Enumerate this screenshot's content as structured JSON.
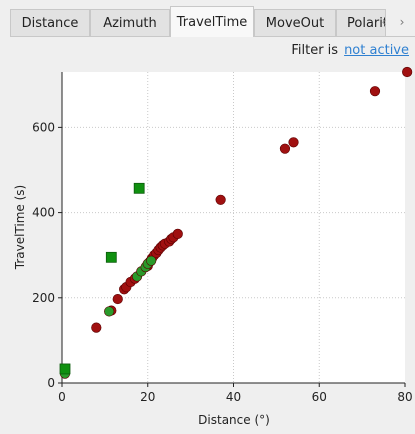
{
  "tabs": [
    {
      "label": "Distance",
      "active": false
    },
    {
      "label": "Azimuth",
      "active": false
    },
    {
      "label": "TravelTime",
      "active": true
    },
    {
      "label": "MoveOut",
      "active": false
    },
    {
      "label": "Polarity",
      "active": false
    }
  ],
  "tab_arrows": {
    "left": "‹",
    "right": "›"
  },
  "filter": {
    "label": "Filter is",
    "status": "not active"
  },
  "chart_data": {
    "type": "scatter",
    "title": "",
    "xlabel": "Distance (°)",
    "ylabel": "TravelTime (s)",
    "xlim": [
      0,
      80
    ],
    "ylim": [
      0,
      730
    ],
    "xticks": [
      0,
      20,
      40,
      60,
      80
    ],
    "yticks": [
      0,
      200,
      400,
      600
    ],
    "grid": true,
    "legend": "none",
    "series": [
      {
        "marker": "circle",
        "color": "#a01010",
        "points": [
          [
            8,
            130
          ],
          [
            11.5,
            170
          ],
          [
            13,
            197
          ],
          [
            14.5,
            220
          ],
          [
            15,
            225
          ],
          [
            16,
            237
          ],
          [
            17,
            245
          ],
          [
            20,
            275
          ],
          [
            20.5,
            285
          ],
          [
            21,
            293
          ],
          [
            21.5,
            300
          ],
          [
            22,
            305
          ],
          [
            22.5,
            312
          ],
          [
            23,
            318
          ],
          [
            23.5,
            323
          ],
          [
            24,
            327
          ],
          [
            25,
            332
          ],
          [
            25.5,
            338
          ],
          [
            26,
            342
          ],
          [
            27,
            350
          ],
          [
            37,
            430
          ],
          [
            52,
            550
          ],
          [
            54,
            565
          ],
          [
            73,
            685
          ],
          [
            80.5,
            730
          ]
        ]
      },
      {
        "marker": "circle",
        "color": "#2a9a2a",
        "points": [
          [
            0.7,
            22
          ],
          [
            11,
            168
          ],
          [
            17.5,
            250
          ],
          [
            18.5,
            262
          ],
          [
            19.5,
            272
          ],
          [
            20,
            280
          ],
          [
            20.8,
            287
          ]
        ]
      },
      {
        "marker": "square",
        "color": "#109010",
        "points": [
          [
            0.7,
            33
          ],
          [
            11.5,
            295
          ],
          [
            18,
            457
          ]
        ]
      }
    ]
  }
}
